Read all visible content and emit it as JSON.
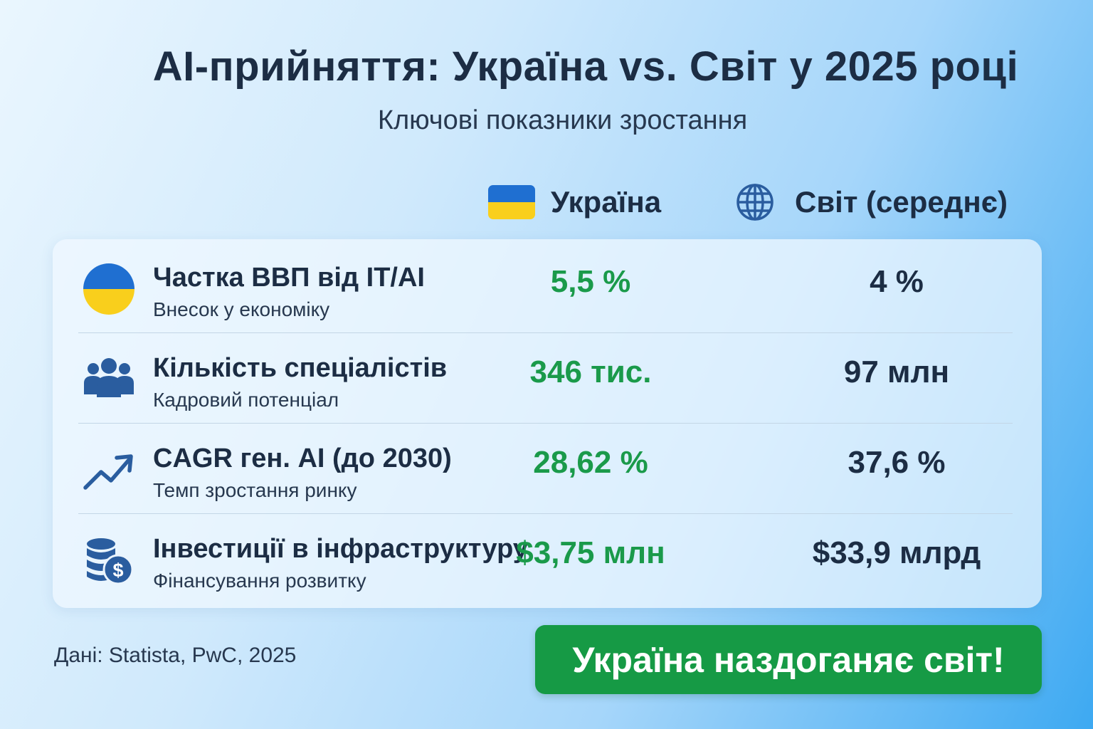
{
  "header": {
    "title": "AI-прийняття: Україна vs. Світ у 2025 році",
    "subtitle": "Ключові показники зростання"
  },
  "columns": {
    "ukraine": "Україна",
    "world": "Світ (середнє)"
  },
  "rows": [
    {
      "label": "Частка ВВП від IT/AI",
      "sublabel": "Внесок у економіку",
      "ukraine": "5,5 %",
      "world": "4 %",
      "icon": "ukraine-flag-circle-icon"
    },
    {
      "label": "Кількість спеціалістів",
      "sublabel": "Кадровий потенціал",
      "ukraine": "346 тис.",
      "world": "97 млн",
      "icon": "people-group-icon"
    },
    {
      "label": "CAGR ген. AI (до 2030)",
      "sublabel": "Темп зростання ринку",
      "ukraine": "28,62 %",
      "world": "37,6 %",
      "icon": "trend-up-arrow-icon"
    },
    {
      "label": "Інвестиції в інфраструктуру",
      "sublabel": "Фінансування розвитку",
      "ukraine": "$3,75 млн",
      "world": "$33,9 млрд",
      "icon": "coins-dollar-icon"
    }
  ],
  "footer": {
    "source": "Дані: Statista, PwC, 2025",
    "cta": "Україна наздоганяє світ!"
  },
  "colors": {
    "ukraine_value": "#1a9a4a",
    "world_value": "#1c2d44",
    "flag_blue": "#1f6fd1",
    "flag_yellow": "#f9cf1c",
    "icon_blue": "#2a5d9f",
    "cta_bg": "#169a45"
  }
}
